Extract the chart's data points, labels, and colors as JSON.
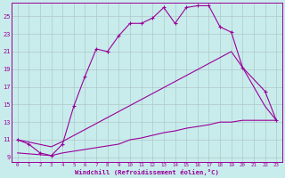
{
  "xlabel": "Windchill (Refroidissement éolien,°C)",
  "bg_color": "#c8ecec",
  "line_color": "#990099",
  "grid_color": "#b0c8c8",
  "xlim": [
    -0.5,
    23.5
  ],
  "ylim": [
    8.5,
    26.5
  ],
  "xticks": [
    0,
    1,
    2,
    3,
    4,
    5,
    6,
    7,
    8,
    9,
    10,
    11,
    12,
    13,
    14,
    15,
    16,
    17,
    18,
    19,
    20,
    21,
    22,
    23
  ],
  "yticks": [
    9,
    11,
    13,
    15,
    17,
    19,
    21,
    23,
    25
  ],
  "line1": {
    "pts": [
      [
        0,
        11.0
      ],
      [
        1,
        10.5
      ],
      [
        2,
        9.5
      ],
      [
        3,
        9.2
      ],
      [
        4,
        10.5
      ],
      [
        5,
        14.8
      ],
      [
        6,
        18.2
      ],
      [
        7,
        21.3
      ],
      [
        8,
        21.0
      ],
      [
        9,
        22.8
      ],
      [
        10,
        24.2
      ],
      [
        11,
        24.2
      ],
      [
        12,
        24.8
      ],
      [
        13,
        26.0
      ],
      [
        14,
        24.2
      ],
      [
        15,
        26.0
      ],
      [
        16,
        26.2
      ],
      [
        17,
        26.2
      ],
      [
        18,
        23.8
      ],
      [
        19,
        23.2
      ],
      [
        20,
        19.2
      ],
      [
        22,
        16.5
      ],
      [
        23,
        13.2
      ]
    ],
    "marker": true
  },
  "line2": {
    "pts": [
      [
        0,
        11.0
      ],
      [
        3,
        10.2
      ],
      [
        4,
        10.8
      ],
      [
        19,
        21.0
      ],
      [
        20,
        19.2
      ],
      [
        22,
        14.8
      ],
      [
        23,
        13.2
      ]
    ],
    "marker": false
  },
  "line3": {
    "pts": [
      [
        0,
        9.5
      ],
      [
        3,
        9.2
      ],
      [
        4,
        9.5
      ],
      [
        9,
        10.5
      ],
      [
        10,
        11.0
      ],
      [
        11,
        11.2
      ],
      [
        12,
        11.5
      ],
      [
        13,
        11.8
      ],
      [
        14,
        12.0
      ],
      [
        15,
        12.3
      ],
      [
        16,
        12.5
      ],
      [
        17,
        12.7
      ],
      [
        18,
        13.0
      ],
      [
        19,
        13.0
      ],
      [
        20,
        13.2
      ],
      [
        21,
        13.2
      ],
      [
        22,
        13.2
      ],
      [
        23,
        13.2
      ]
    ],
    "marker": false
  }
}
